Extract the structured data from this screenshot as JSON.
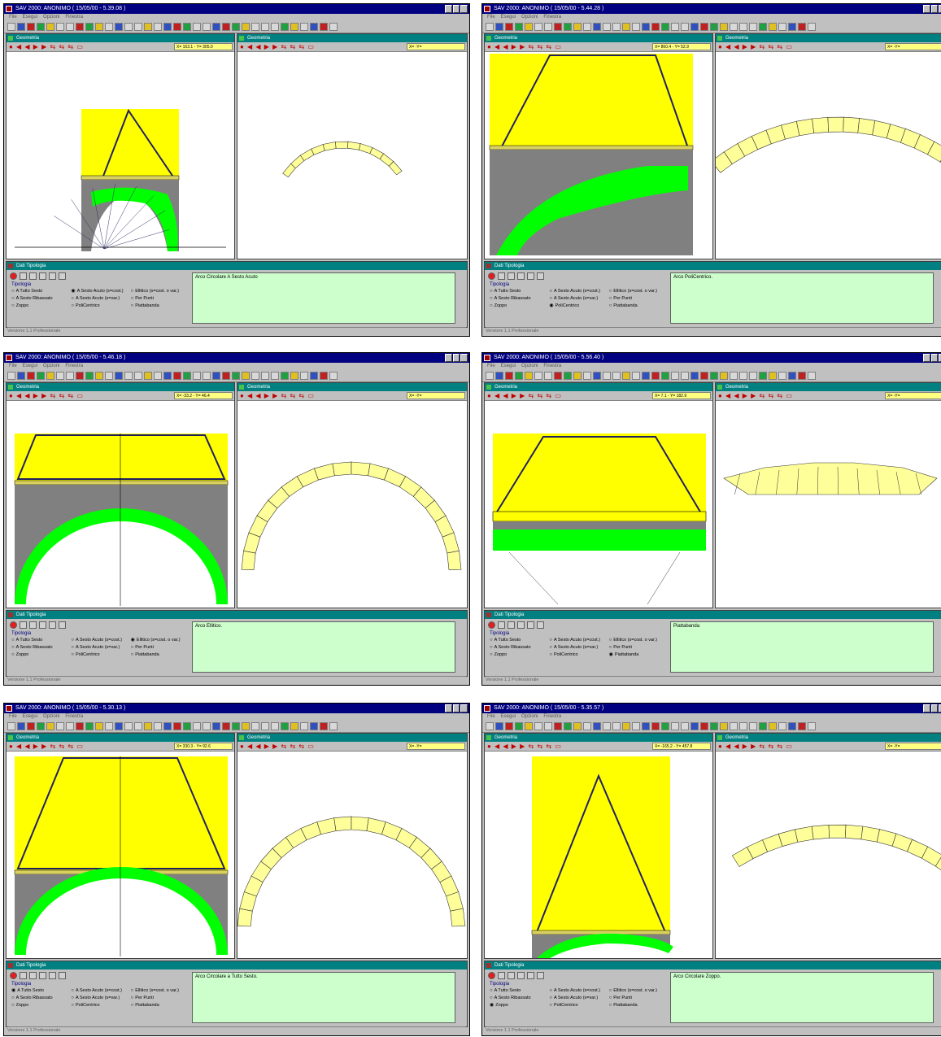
{
  "window_title": "SAV 2000: ANONIMO",
  "menu": [
    "File",
    "Esegui",
    "Opzioni",
    "Finestra"
  ],
  "panel_geometria": "Geometria",
  "panel_dati": "Dati Tipologia",
  "tipologia_label": "Tipologia",
  "tipologia_options": [
    "A Tutto Sesto",
    "A Sesto Acuto (s=cost.)",
    "Ellitico (s=cost. o var.)",
    "A Sesto Ribassato",
    "A Sesto Acuto (s=var.)",
    "Per Punti",
    "Zoppo",
    "PoliCentrico",
    "Piattabanda"
  ],
  "status_text": "Versione 1.1 Professionale",
  "colors": {
    "titlebar": "#000080",
    "panel_header": "#008080",
    "fill": "#ffff00",
    "masonry": "#808080",
    "arch": "#00ff00",
    "blocks": "#ffff99",
    "desc_bg": "#ccffcc"
  },
  "screens": [
    {
      "time": "( 15/05/00 - 5.39.08 )",
      "coord": "X= 163.1 - Y= 305.0",
      "desc": "Arco Circolare A Sesto Acuto",
      "selected": 1,
      "shape": "pointed",
      "preview": "pointed"
    },
    {
      "time": "( 15/05/00 - 5.44.28 )",
      "coord": "X= 860.4 - Y= 52.9",
      "desc": "Arco PoliCentrico.",
      "selected": 7,
      "shape": "poly",
      "preview": "poly"
    },
    {
      "time": "( 15/05/00 - 5.46.18 )",
      "coord": "X= -33.2 - Y= 46.4",
      "desc": "Arco Ellitico.",
      "selected": 2,
      "shape": "ellipse",
      "preview": "half"
    },
    {
      "time": "( 15/05/00 - 5.56.40 )",
      "coord": "X= 7.1 - Y= 182.9",
      "desc": "Piattabanda",
      "selected": 8,
      "shape": "flat",
      "preview": "flat"
    },
    {
      "time": "( 15/05/00 - 5.30.13 )",
      "coord": "X= 330.3 - Y= 92.6",
      "desc": "Arco Circolare a Tutto Sesto.",
      "selected": 0,
      "shape": "round",
      "preview": "round"
    },
    {
      "time": "( 15/05/00 - 5.35.57 )",
      "coord": "X= -165.2 - Y= 457.8",
      "desc": "Arco Circolare Zoppo.",
      "selected": 6,
      "shape": "zoppo",
      "preview": "zoppo"
    }
  ]
}
